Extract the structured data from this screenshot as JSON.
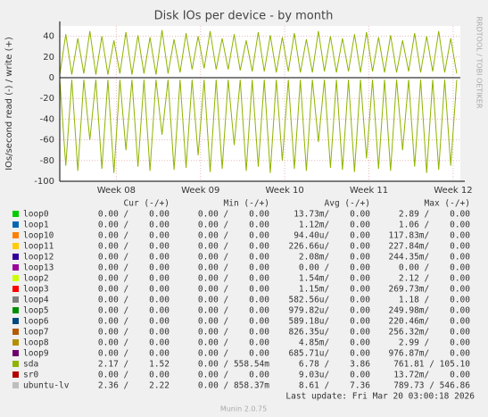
{
  "chart_data": {
    "type": "line",
    "title": "Disk IOs per device - by month",
    "y_label": "IOs/second read (-) / write (+)",
    "watermark": "RRDTOOL / TOBI OETIKER",
    "ylim": [
      -100,
      50
    ],
    "yticks": [
      -100,
      -80,
      -60,
      -40,
      -20,
      0,
      20,
      40
    ],
    "xlim": [
      0,
      33.3
    ],
    "xticks": [
      {
        "value": 4.7,
        "label": "Week 08"
      },
      {
        "value": 11.7,
        "label": "Week 09"
      },
      {
        "value": 18.7,
        "label": "Week 10"
      },
      {
        "value": 25.7,
        "label": "Week 11"
      },
      {
        "value": 32.7,
        "label": "Week 12"
      }
    ],
    "grid": true,
    "x": [
      0,
      0.5,
      1,
      1.5,
      2,
      2.5,
      3,
      3.5,
      4,
      4.5,
      5,
      5.5,
      6,
      6.5,
      7,
      7.5,
      8,
      8.5,
      9,
      9.5,
      10,
      10.5,
      11,
      11.5,
      12,
      12.5,
      13,
      13.5,
      14,
      14.5,
      15,
      15.5,
      16,
      16.5,
      17,
      17.5,
      18,
      18.5,
      19,
      19.5,
      20,
      20.5,
      21,
      21.5,
      22,
      22.5,
      23,
      23.5,
      24,
      24.5,
      25,
      25.5,
      26,
      26.5,
      27,
      27.5,
      28,
      28.5,
      29,
      29.5,
      30,
      30.5,
      31,
      31.5,
      32,
      32.5,
      33
    ],
    "legend_headers": [
      "Cur (-/+)",
      "Min (-/+)",
      "Avg (-/+)",
      "Max (-/+)"
    ],
    "series": [
      {
        "name": "loop0",
        "color": "#00cc00",
        "stats": [
          "0.00 /    0.00",
          "0.00 /    0.00",
          "13.73m/    0.00",
          "2.89 /    0.00"
        ]
      },
      {
        "name": "loop1",
        "color": "#0066b3",
        "stats": [
          "0.00 /    0.00",
          "0.00 /    0.00",
          "1.12m/    0.00",
          "1.06 /    0.00"
        ]
      },
      {
        "name": "loop10",
        "color": "#ff8000",
        "stats": [
          "0.00 /    0.00",
          "0.00 /    0.00",
          "94.40u/    0.00",
          "117.83m/    0.00"
        ]
      },
      {
        "name": "loop11",
        "color": "#ffcc00",
        "stats": [
          "0.00 /    0.00",
          "0.00 /    0.00",
          "226.66u/    0.00",
          "227.84m/    0.00"
        ]
      },
      {
        "name": "loop12",
        "color": "#330099",
        "stats": [
          "0.00 /    0.00",
          "0.00 /    0.00",
          "2.08m/    0.00",
          "244.35m/    0.00"
        ]
      },
      {
        "name": "loop13",
        "color": "#990099",
        "stats": [
          "0.00 /    0.00",
          "0.00 /    0.00",
          "0.00 /    0.00",
          "0.00 /    0.00"
        ]
      },
      {
        "name": "loop2",
        "color": "#ccff00",
        "stats": [
          "0.00 /    0.00",
          "0.00 /    0.00",
          "1.54m/    0.00",
          "2.12 /    0.00"
        ]
      },
      {
        "name": "loop3",
        "color": "#ff0000",
        "stats": [
          "0.00 /    0.00",
          "0.00 /    0.00",
          "1.15m/    0.00",
          "269.73m/    0.00"
        ]
      },
      {
        "name": "loop4",
        "color": "#808080",
        "stats": [
          "0.00 /    0.00",
          "0.00 /    0.00",
          "582.56u/    0.00",
          "1.18 /    0.00"
        ]
      },
      {
        "name": "loop5",
        "color": "#008f00",
        "stats": [
          "0.00 /    0.00",
          "0.00 /    0.00",
          "979.82u/    0.00",
          "249.98m/    0.00"
        ]
      },
      {
        "name": "loop6",
        "color": "#00487d",
        "stats": [
          "0.00 /    0.00",
          "0.00 /    0.00",
          "589.18u/    0.00",
          "220.46m/    0.00"
        ]
      },
      {
        "name": "loop7",
        "color": "#b35a00",
        "stats": [
          "0.00 /    0.00",
          "0.00 /    0.00",
          "826.35u/    0.00",
          "256.32m/    0.00"
        ]
      },
      {
        "name": "loop8",
        "color": "#b38f00",
        "stats": [
          "0.00 /    0.00",
          "0.00 /    0.00",
          "4.85m/    0.00",
          "2.99 /    0.00"
        ]
      },
      {
        "name": "loop9",
        "color": "#6b006b",
        "stats": [
          "0.00 /    0.00",
          "0.00 /    0.00",
          "685.71u/    0.00",
          "976.87m/    0.00"
        ]
      },
      {
        "name": "sda",
        "color": "#8fb300",
        "stats": [
          "2.17 /    1.52",
          "0.00 / 558.54m",
          "6.78 /    3.86",
          "761.81 / 105.10"
        ],
        "write": [
          3,
          42,
          3,
          38,
          4,
          45,
          3,
          40,
          3,
          36,
          4,
          44,
          3,
          41,
          4,
          39,
          3,
          46,
          4,
          37,
          5,
          43,
          8,
          40,
          9,
          45,
          8,
          38,
          8,
          42,
          7,
          36,
          6,
          44,
          6,
          41,
          5,
          39,
          6,
          43,
          5,
          37,
          5,
          45,
          6,
          40,
          5,
          38,
          6,
          42,
          5,
          44,
          6,
          39,
          5,
          41,
          5,
          36,
          6,
          43,
          5,
          40,
          6,
          45,
          5,
          38,
          4
        ],
        "read": [
          -2,
          -85,
          -2,
          -90,
          -2,
          -60,
          -2,
          -88,
          -2,
          -92,
          -2,
          -70,
          -2,
          -86,
          -2,
          -90,
          -2,
          -55,
          -2,
          -89,
          -2,
          -87,
          -2,
          -75,
          -2,
          -91,
          -2,
          -88,
          -2,
          -65,
          -2,
          -90,
          -2,
          -86,
          -2,
          -92,
          -2,
          -80,
          -2,
          -88,
          -2,
          -90,
          -2,
          -62,
          -2,
          -87,
          -2,
          -89,
          -2,
          -91,
          -2,
          -78,
          -2,
          -88,
          -2,
          -90,
          -2,
          -70,
          -2,
          -86,
          -2,
          -92,
          -2,
          -89,
          -2,
          -85,
          -2
        ]
      },
      {
        "name": "sr0",
        "color": "#b30000",
        "stats": [
          "0.00 /    0.00",
          "0.00 /    0.00",
          "9.03u/    0.00",
          "13.72m/    0.00"
        ]
      },
      {
        "name": "ubuntu-lv",
        "color": "#bebebe",
        "stats": [
          "2.36 /    2.22",
          "0.00 / 858.37m",
          "8.61 /    7.36",
          "789.73 / 546.86"
        ]
      }
    ],
    "last_update": "Last update: Fri Mar 20 03:00:18 2026",
    "footer": "Munin 2.0.75"
  }
}
